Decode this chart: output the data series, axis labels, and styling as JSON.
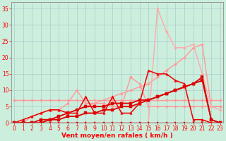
{
  "xlabel": "Vent moyen/en rafales ( km/h )",
  "background_color": "#cceedd",
  "grid_color": "#aacccc",
  "xlim": [
    -0.3,
    23.3
  ],
  "ylim": [
    0,
    37
  ],
  "yticks": [
    0,
    5,
    10,
    15,
    20,
    25,
    30,
    35
  ],
  "xticks": [
    0,
    1,
    2,
    3,
    4,
    5,
    6,
    7,
    8,
    9,
    10,
    11,
    12,
    13,
    14,
    15,
    16,
    17,
    18,
    19,
    20,
    21,
    22,
    23
  ],
  "series": [
    {
      "name": "pink_flat_7",
      "x": [
        0,
        1,
        2,
        3,
        4,
        5,
        6,
        7,
        8,
        9,
        10,
        11,
        12,
        13,
        14,
        15,
        16,
        17,
        18,
        19,
        20,
        21,
        22,
        23
      ],
      "y": [
        7,
        7,
        7,
        7,
        7,
        7,
        7,
        7,
        7,
        7,
        7,
        7,
        7,
        7,
        7,
        7,
        7,
        7,
        7,
        7,
        7,
        7,
        7,
        7
      ],
      "color": "#ff9999",
      "lw": 1.0,
      "marker": "D",
      "ms": 2.0
    },
    {
      "name": "pink_diagonal_rising",
      "x": [
        0,
        1,
        2,
        3,
        4,
        5,
        6,
        7,
        8,
        9,
        10,
        11,
        12,
        13,
        14,
        15,
        16,
        17,
        18,
        19,
        20,
        21,
        22,
        23
      ],
      "y": [
        0,
        0,
        0,
        0,
        1,
        2,
        3,
        4,
        5,
        6,
        7,
        8,
        9,
        10,
        11,
        12,
        14,
        16,
        18,
        20,
        23,
        24,
        5,
        5
      ],
      "color": "#ff9999",
      "lw": 1.0,
      "marker": "D",
      "ms": 2.0
    },
    {
      "name": "pink_wavy",
      "x": [
        0,
        1,
        2,
        3,
        4,
        5,
        6,
        7,
        8,
        9,
        10,
        11,
        12,
        13,
        14,
        15,
        16,
        17,
        18,
        19,
        20,
        21,
        22,
        23
      ],
      "y": [
        0,
        0,
        2,
        3,
        4,
        4,
        6,
        10,
        6,
        6,
        6,
        5,
        5,
        14,
        12,
        5,
        5,
        5,
        5,
        5,
        5,
        5,
        5,
        5
      ],
      "color": "#ff9999",
      "lw": 1.0,
      "marker": "D",
      "ms": 2.0
    },
    {
      "name": "pink_big_peak",
      "x": [
        0,
        1,
        2,
        3,
        4,
        5,
        6,
        7,
        8,
        9,
        10,
        11,
        12,
        13,
        14,
        15,
        16,
        17,
        18,
        19,
        20,
        21,
        22,
        23
      ],
      "y": [
        0,
        0,
        0,
        0,
        0,
        0,
        0,
        0,
        0,
        0,
        0,
        0,
        0,
        0,
        0,
        0,
        35,
        28,
        23,
        23,
        24,
        15,
        5,
        4
      ],
      "color": "#ffaaaa",
      "lw": 1.0,
      "marker": "D",
      "ms": 2.0
    },
    {
      "name": "dark_rising_line1",
      "x": [
        0,
        1,
        2,
        3,
        4,
        5,
        6,
        7,
        8,
        9,
        10,
        11,
        12,
        13,
        14,
        15,
        16,
        17,
        18,
        19,
        20,
        21,
        22,
        23
      ],
      "y": [
        0,
        0,
        0,
        1,
        1,
        2,
        3,
        4,
        5,
        5,
        5,
        6,
        6,
        6,
        7,
        7,
        8,
        9,
        10,
        11,
        12,
        13,
        1,
        0
      ],
      "color": "#dd0000",
      "lw": 1.3,
      "marker": "s",
      "ms": 2.5
    },
    {
      "name": "dark_rising_line2",
      "x": [
        0,
        1,
        2,
        3,
        4,
        5,
        6,
        7,
        8,
        9,
        10,
        11,
        12,
        13,
        14,
        15,
        16,
        17,
        18,
        19,
        20,
        21,
        22,
        23
      ],
      "y": [
        0,
        0,
        0,
        0,
        1,
        1,
        2,
        2,
        3,
        3,
        4,
        4,
        5,
        5,
        6,
        7,
        8,
        9,
        10,
        11,
        12,
        14,
        1,
        0
      ],
      "color": "#dd0000",
      "lw": 1.3,
      "marker": "s",
      "ms": 2.5
    },
    {
      "name": "dark_flat_zero",
      "x": [
        0,
        1,
        2,
        3,
        4,
        5,
        6,
        7,
        8,
        9,
        10,
        11,
        12,
        13,
        14,
        15,
        16,
        17,
        18,
        19,
        20,
        21,
        22,
        23
      ],
      "y": [
        0,
        0,
        0,
        0,
        0,
        0,
        0,
        0,
        0,
        0,
        0,
        0,
        0,
        0,
        0,
        0,
        0,
        0,
        0,
        0,
        0,
        0,
        0,
        0
      ],
      "color": "#cc0000",
      "lw": 1.0,
      "marker": "s",
      "ms": 2.0
    },
    {
      "name": "dark_spiky",
      "x": [
        0,
        1,
        2,
        3,
        4,
        5,
        6,
        7,
        8,
        9,
        10,
        11,
        12,
        13,
        14,
        15,
        16,
        17,
        18,
        19,
        20,
        21,
        22,
        23
      ],
      "y": [
        0,
        1,
        2,
        3,
        4,
        4,
        3,
        3,
        8,
        3,
        3,
        8,
        3,
        3,
        6,
        16,
        15,
        15,
        13,
        12,
        1,
        1,
        0,
        0
      ],
      "color": "#ee0000",
      "lw": 1.1,
      "marker": "^",
      "ms": 2.5
    }
  ]
}
